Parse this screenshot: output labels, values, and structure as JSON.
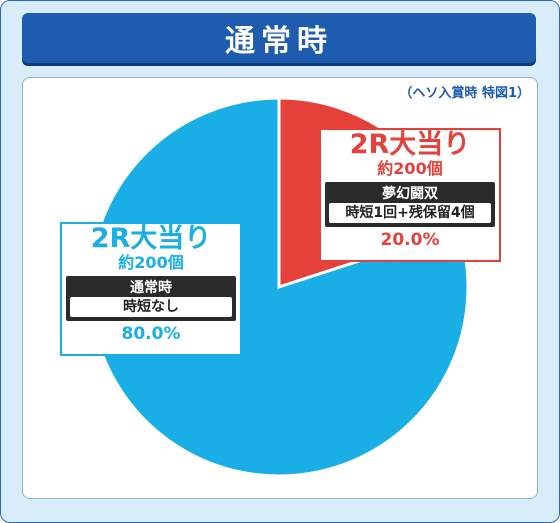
{
  "header": {
    "title": "通常時"
  },
  "note": "（ヘソ入賞時 特図1）",
  "colors": {
    "slice_small": "#e5403a",
    "slice_large": "#19aee6",
    "header": "#1d5cae"
  },
  "chart_data": {
    "type": "pie",
    "title": "通常時",
    "slices": [
      {
        "label": "2R大当り",
        "sub": "約200個",
        "mode": "夢幻闘双",
        "detail": "時短1回+残保留4個",
        "value": 20.0,
        "value_label": "20.0%",
        "color": "#e5403a"
      },
      {
        "label": "2R大当り",
        "sub": "約200個",
        "mode": "通常時",
        "detail": "時短なし",
        "value": 80.0,
        "value_label": "80.0%",
        "color": "#19aee6"
      }
    ]
  }
}
